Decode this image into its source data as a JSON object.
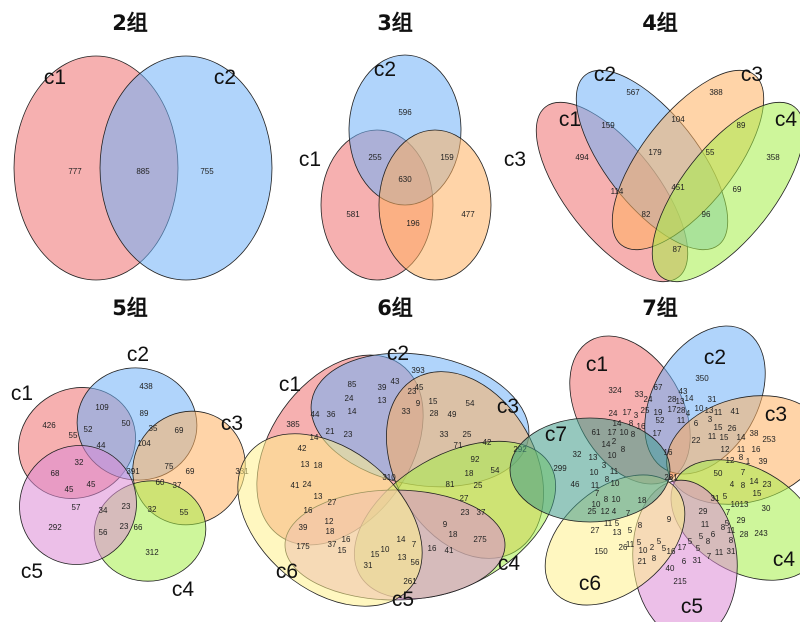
{
  "colors": {
    "c1": "#ee6f6f",
    "c2": "#6fb1f7",
    "c3": "#ffb061",
    "c4": "#a6ef48",
    "c5": "#dc8bd6",
    "c6": "#fff08c",
    "c7": "#3f9a88"
  },
  "panels": [
    {
      "title": "2组",
      "sets": [
        "c1",
        "c2"
      ],
      "counts": [
        777,
        885,
        755
      ]
    },
    {
      "title": "3组",
      "sets": [
        "c1",
        "c2",
        "c3"
      ],
      "counts": [
        596,
        255,
        159,
        630,
        581,
        196,
        477
      ]
    },
    {
      "title": "4组",
      "sets": [
        "c1",
        "c2",
        "c3",
        "c4"
      ],
      "counts": [
        567,
        388,
        159,
        104,
        89,
        494,
        179,
        55,
        358,
        114,
        451,
        69,
        82,
        96,
        87
      ]
    },
    {
      "title": "5组",
      "sets": [
        "c1",
        "c2",
        "c3",
        "c4",
        "c5"
      ],
      "counts": [
        438,
        109,
        89,
        426,
        55,
        52,
        50,
        35,
        69,
        44,
        104,
        32,
        75,
        68,
        391,
        69,
        331,
        45,
        45,
        60,
        37,
        57,
        34,
        23,
        32,
        55,
        292,
        56,
        23,
        66,
        312
      ]
    },
    {
      "title": "6组",
      "sets": [
        "c1",
        "c2",
        "c3",
        "c4",
        "c5",
        "c6"
      ],
      "counts": [
        393,
        85,
        39,
        43,
        45,
        24,
        13,
        23,
        9,
        15,
        54,
        44,
        36,
        14,
        33,
        28,
        49,
        385,
        14,
        21,
        23,
        33,
        25,
        71,
        42,
        292,
        42,
        13,
        18,
        92,
        54,
        310,
        81,
        18,
        41,
        24,
        13,
        25,
        27,
        27,
        16,
        23,
        37,
        12,
        39,
        9,
        18,
        18,
        14,
        275,
        175,
        37,
        16,
        7,
        16,
        41,
        15,
        15,
        10,
        13,
        56,
        31,
        261
      ]
    },
    {
      "title": "7组",
      "sets": [
        "c1",
        "c2",
        "c3",
        "c4",
        "c5",
        "c6",
        "c7"
      ],
      "counts": [
        350,
        324,
        33,
        67,
        43,
        31,
        24,
        25,
        28,
        13,
        14,
        13,
        41,
        24,
        17,
        3,
        19,
        17,
        28,
        4,
        10,
        11,
        15,
        26,
        38,
        253,
        14,
        8,
        16,
        52,
        11,
        6,
        3,
        17,
        22,
        11,
        15,
        14,
        61,
        17,
        10,
        8,
        14,
        2,
        8,
        12,
        11,
        16,
        32,
        13,
        10,
        16,
        12,
        8,
        1,
        39,
        299,
        10,
        3,
        11,
        281,
        50,
        7,
        46,
        11,
        8,
        10,
        4,
        8,
        14,
        23,
        7,
        10,
        8,
        10,
        18,
        31,
        5,
        15,
        25,
        12,
        4,
        7,
        29,
        7,
        10,
        13,
        30,
        11,
        5,
        8,
        9,
        5,
        29,
        27,
        13,
        5,
        11,
        8,
        11,
        11,
        5,
        5,
        5,
        5,
        8,
        6,
        8,
        28,
        243,
        150,
        26,
        10,
        2,
        5,
        17,
        5,
        7,
        11,
        31,
        21,
        8,
        16,
        6,
        31,
        40,
        215
      ]
    }
  ]
}
